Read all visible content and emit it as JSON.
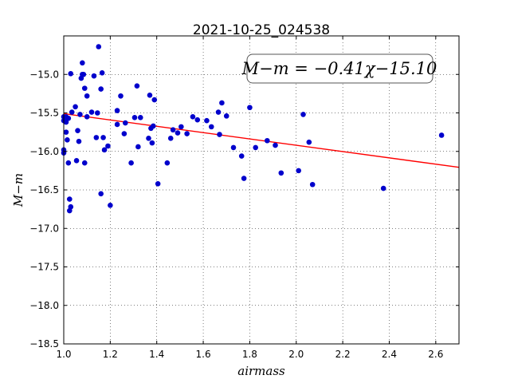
{
  "chart_data": {
    "type": "scatter",
    "title": "2021-10-25_024538",
    "xlabel": "airmass",
    "ylabel": "M−m",
    "xlim": [
      1.0,
      2.7
    ],
    "ylim": [
      -18.5,
      -14.5
    ],
    "x_ticks": [
      1.0,
      1.2,
      1.4,
      1.6,
      1.8,
      2.0,
      2.2,
      2.4,
      2.6
    ],
    "x_tick_labels": [
      "1.0",
      "1.2",
      "1.4",
      "1.6",
      "1.8",
      "2.0",
      "2.2",
      "2.4",
      "2.6"
    ],
    "y_ticks": [
      -15.0,
      -15.5,
      -16.0,
      -16.5,
      -17.0,
      -17.5,
      -18.0,
      -18.5
    ],
    "y_tick_labels": [
      "−15.0",
      "−15.5",
      "−16.0",
      "−16.5",
      "−17.0",
      "−17.5",
      "−18.0",
      "−18.5"
    ],
    "grid": true,
    "annotation": "M−m = −0.41χ−15.10",
    "fit": {
      "slope": -0.41,
      "intercept": -15.1,
      "color": "#ff0000"
    },
    "point_color": "#0000cc",
    "points": [
      [
        1.0,
        -15.55
      ],
      [
        1.0,
        -15.6
      ],
      [
        1.0,
        -15.98
      ],
      [
        1.0,
        -16.02
      ],
      [
        1.01,
        -15.55
      ],
      [
        1.01,
        -15.62
      ],
      [
        1.01,
        -15.75
      ],
      [
        1.015,
        -15.85
      ],
      [
        1.02,
        -15.57
      ],
      [
        1.02,
        -16.15
      ],
      [
        1.025,
        -16.62
      ],
      [
        1.025,
        -16.77
      ],
      [
        1.03,
        -16.72
      ],
      [
        1.03,
        -14.99
      ],
      [
        1.035,
        -15.49
      ],
      [
        1.05,
        -15.42
      ],
      [
        1.055,
        -16.12
      ],
      [
        1.06,
        -15.73
      ],
      [
        1.065,
        -15.87
      ],
      [
        1.07,
        -15.52
      ],
      [
        1.075,
        -15.05
      ],
      [
        1.08,
        -15.0
      ],
      [
        1.08,
        -14.85
      ],
      [
        1.085,
        -15.0
      ],
      [
        1.09,
        -15.18
      ],
      [
        1.09,
        -16.15
      ],
      [
        1.1,
        -15.55
      ],
      [
        1.1,
        -15.28
      ],
      [
        1.12,
        -15.49
      ],
      [
        1.13,
        -15.02
      ],
      [
        1.14,
        -15.82
      ],
      [
        1.145,
        -15.5
      ],
      [
        1.15,
        -14.64
      ],
      [
        1.16,
        -16.55
      ],
      [
        1.16,
        -15.19
      ],
      [
        1.165,
        -14.98
      ],
      [
        1.17,
        -15.82
      ],
      [
        1.175,
        -15.98
      ],
      [
        1.19,
        -15.93
      ],
      [
        1.2,
        -16.7
      ],
      [
        1.23,
        -15.47
      ],
      [
        1.23,
        -15.65
      ],
      [
        1.245,
        -15.28
      ],
      [
        1.26,
        -15.77
      ],
      [
        1.265,
        -15.63
      ],
      [
        1.29,
        -16.15
      ],
      [
        1.305,
        -15.56
      ],
      [
        1.315,
        -15.15
      ],
      [
        1.32,
        -15.94
      ],
      [
        1.33,
        -15.56
      ],
      [
        1.365,
        -15.83
      ],
      [
        1.37,
        -15.27
      ],
      [
        1.375,
        -15.7
      ],
      [
        1.38,
        -15.89
      ],
      [
        1.385,
        -15.67
      ],
      [
        1.39,
        -15.33
      ],
      [
        1.405,
        -16.42
      ],
      [
        1.445,
        -16.15
      ],
      [
        1.46,
        -15.83
      ],
      [
        1.47,
        -15.72
      ],
      [
        1.49,
        -15.76
      ],
      [
        1.505,
        -15.68
      ],
      [
        1.53,
        -15.77
      ],
      [
        1.555,
        -15.55
      ],
      [
        1.575,
        -15.59
      ],
      [
        1.615,
        -15.6
      ],
      [
        1.635,
        -15.68
      ],
      [
        1.665,
        -15.49
      ],
      [
        1.67,
        -15.78
      ],
      [
        1.68,
        -15.37
      ],
      [
        1.7,
        -15.54
      ],
      [
        1.73,
        -15.95
      ],
      [
        1.765,
        -16.06
      ],
      [
        1.775,
        -16.35
      ],
      [
        1.8,
        -15.43
      ],
      [
        1.825,
        -15.95
      ],
      [
        1.875,
        -15.86
      ],
      [
        1.91,
        -15.92
      ],
      [
        1.935,
        -16.28
      ],
      [
        2.01,
        -16.25
      ],
      [
        2.03,
        -15.52
      ],
      [
        2.055,
        -15.88
      ],
      [
        2.07,
        -16.43
      ],
      [
        2.375,
        -16.48
      ],
      [
        2.625,
        -15.79
      ]
    ]
  }
}
